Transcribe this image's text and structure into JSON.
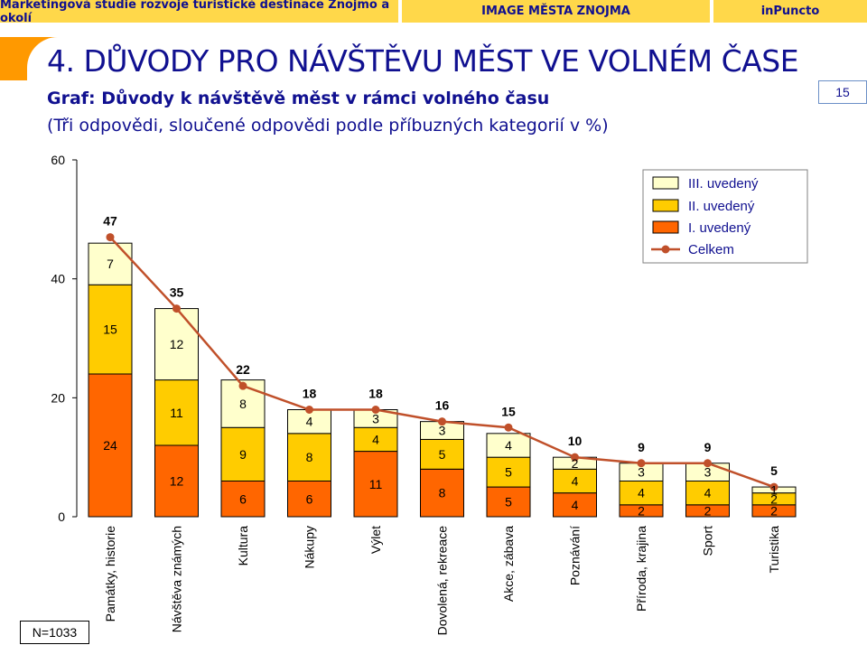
{
  "header": {
    "left": "Marketingová studie rozvoje turistické destinace Znojmo a okolí",
    "center": "IMAGE MĚSTA ZNOJMA",
    "right": "inPuncto"
  },
  "page": {
    "heading": "4. DŮVODY PRO NÁVŠTĚVU MĚST VE VOLNÉM ČASE",
    "subtitle": "Graf: Důvody k návštěvě měst v rámci volného času",
    "subtitle2": "(Tři odpovědi, sloučené odpovědi podle příbuzných kategorií v %)",
    "page_number": "15",
    "sample_size": "N=1033"
  },
  "colors": {
    "first": "#ff6600",
    "second": "#ffcc00",
    "third": "#ffffcc",
    "total_line": "#c0502a",
    "text_dark": "#101090"
  },
  "chart_data": {
    "type": "bar",
    "stacked": true,
    "categories": [
      "Památky, historie",
      "Návštěva známých",
      "Kultura",
      "Nákupy",
      "Výlet",
      "Dovolená, rekreace",
      "Akce, zábava",
      "Poznávání",
      "Příroda, krajina",
      "Sport",
      "Turistika"
    ],
    "series": [
      {
        "name": "I. uvedený",
        "values": [
          24,
          12,
          6,
          6,
          11,
          8,
          5,
          4,
          2,
          2,
          2
        ]
      },
      {
        "name": "II. uvedený",
        "values": [
          15,
          11,
          9,
          8,
          4,
          5,
          5,
          4,
          4,
          4,
          2
        ]
      },
      {
        "name": "III. uvedený",
        "values": [
          7,
          12,
          8,
          4,
          3,
          3,
          4,
          2,
          3,
          3,
          1
        ]
      },
      {
        "name": "Celkem",
        "type": "line",
        "values": [
          47,
          35,
          22,
          18,
          18,
          16,
          15,
          10,
          9,
          9,
          5
        ]
      }
    ],
    "data_labels": {
      "I. uvedený": [
        "24",
        "12",
        "6",
        "6",
        "11",
        "8",
        "5",
        "4",
        "2",
        "2",
        "2"
      ],
      "II. uvedený": [
        "15",
        "11",
        "9",
        "8",
        "4",
        "5",
        "5",
        "4",
        "4",
        "4",
        "2"
      ],
      "III. uvedený": [
        "7",
        "12",
        "8",
        "4",
        "3",
        "3",
        "4",
        "2",
        "3",
        "3",
        "1"
      ],
      "Celkem": [
        "47",
        "35",
        "22",
        "18",
        "18",
        "16",
        "15",
        "10",
        "9",
        "9",
        "5"
      ]
    },
    "ylim": [
      0,
      60
    ],
    "yticks": [
      "0",
      "20",
      "40",
      "60"
    ],
    "grid": false,
    "legend": {
      "position": "top-right",
      "entries": [
        "III. uvedený",
        "II. uvedený",
        "I. uvedený",
        "Celkem"
      ]
    }
  }
}
